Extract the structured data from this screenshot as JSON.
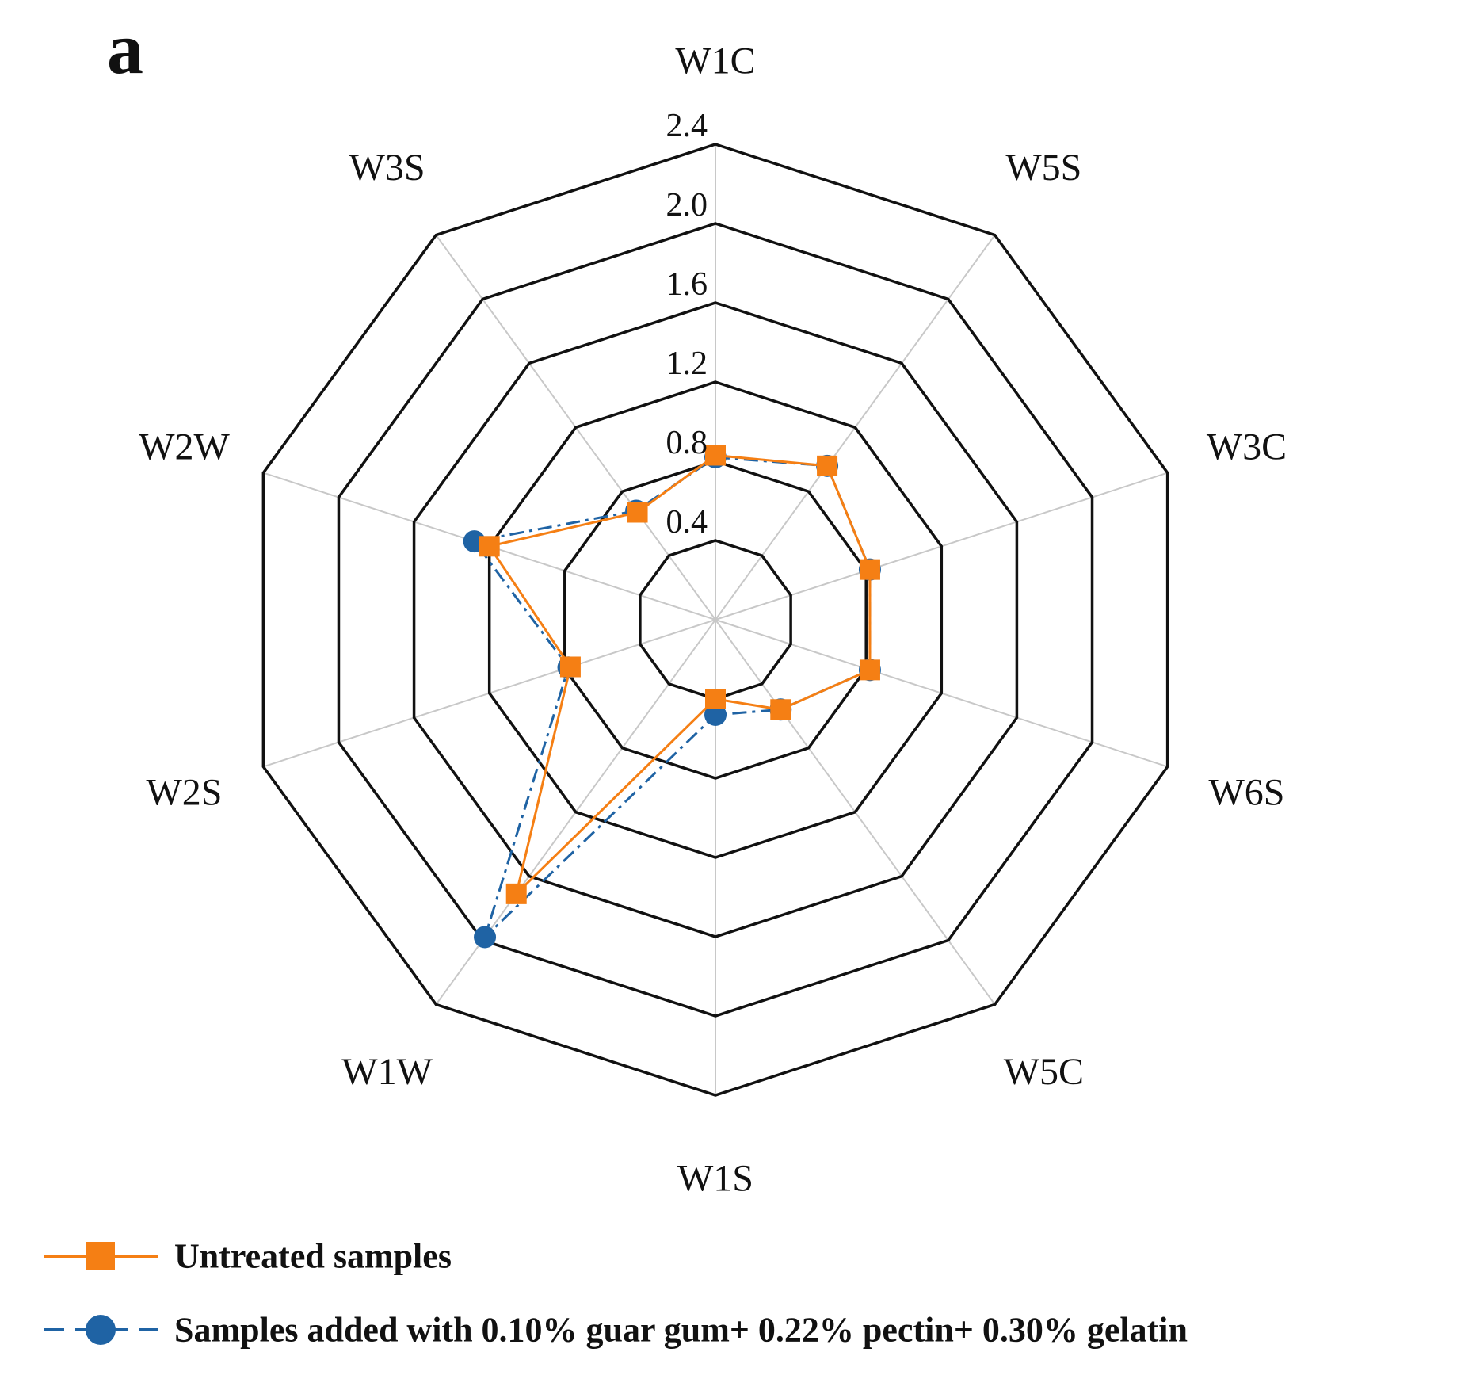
{
  "panel_label": "a",
  "colors": {
    "untreated": "#f57f14",
    "treated": "#1f63a4",
    "ring": "#111111",
    "spoke": "#c8c8c8"
  },
  "chart_data": {
    "type": "radar",
    "axes": [
      "W1C",
      "W5S",
      "W3C",
      "W6S",
      "W5C",
      "W1S",
      "W1W",
      "W2S",
      "W2W",
      "W3S"
    ],
    "rlim": [
      0.0,
      2.4
    ],
    "ticks": [
      "0.4",
      "0.8",
      "1.2",
      "1.6",
      "2.0",
      "2.4"
    ],
    "tick_values": [
      0.4,
      0.8,
      1.2,
      1.6,
      2.0,
      2.4
    ],
    "series": [
      {
        "name": "Untreated samples",
        "marker": "square",
        "line_style": "solid",
        "color_key": "untreated",
        "values": [
          0.83,
          0.96,
          0.82,
          0.82,
          0.56,
          0.4,
          1.71,
          0.77,
          1.2,
          0.67
        ]
      },
      {
        "name": "Samples added with 0.10% guar gum+ 0.22% pectin+ 0.30% gelatin",
        "marker": "circle",
        "line_style": "dashdot",
        "color_key": "treated",
        "values": [
          0.82,
          0.96,
          0.82,
          0.82,
          0.56,
          0.48,
          1.98,
          0.78,
          1.28,
          0.68
        ]
      }
    ],
    "legend_position": "bottom-left",
    "grid": true
  }
}
